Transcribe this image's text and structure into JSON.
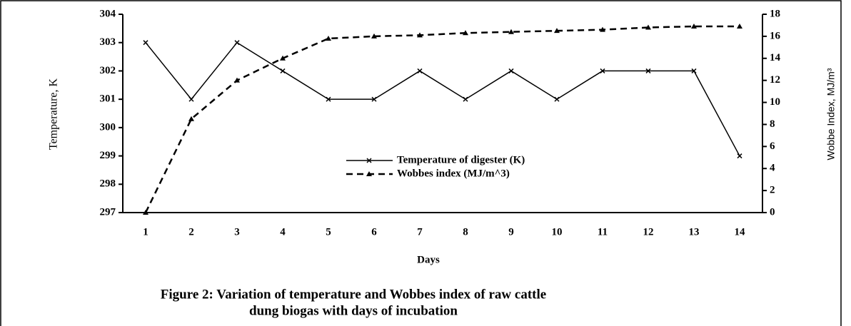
{
  "chart_data": {
    "type": "line",
    "title": [
      "Figure 2: Variation of temperature and Wobbes index  of raw cattle",
      "dung biogas with days of incubation"
    ],
    "xlabel": "Days",
    "ylabel": "Temperature, K",
    "y2label": "Wobbe Index, MJ/m³",
    "categories": [
      "1",
      "2",
      "3",
      "4",
      "5",
      "6",
      "7",
      "8",
      "9",
      "10",
      "11",
      "12",
      "13",
      "14"
    ],
    "series": [
      {
        "name": "Temperature of digester (K)",
        "color": "#000000",
        "dash": false,
        "marker": "x",
        "values": [
          303,
          301,
          303,
          302,
          301,
          301,
          302,
          301,
          302,
          301,
          302,
          302,
          302,
          299
        ]
      },
      {
        "name": "Wobbes index (MJ/m^3)",
        "color": "#000000",
        "dash": true,
        "marker": "triangle",
        "axis": "y2",
        "values": [
          0,
          8.5,
          12,
          14,
          15.8,
          16,
          16.1,
          16.3,
          16.4,
          16.5,
          16.6,
          16.8,
          16.9,
          16.9
        ]
      }
    ],
    "ylim": [
      297,
      304
    ],
    "yticks": [
      297,
      298,
      299,
      300,
      301,
      302,
      303,
      304
    ],
    "y2lim": [
      0,
      18
    ],
    "y2ticks": [
      0,
      2,
      4,
      6,
      8,
      10,
      12,
      14,
      16,
      18
    ]
  }
}
